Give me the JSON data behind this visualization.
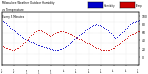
{
  "title": "Milwaukee Weather Outdoor Humidity",
  "subtitle1": "vs Temperature",
  "subtitle2": "Every 5 Minutes",
  "bg_color": "#ffffff",
  "grid_color": "#d0d0d0",
  "humidity_color": "#0000cc",
  "temp_color": "#cc0000",
  "legend_humidity_label": "Humidity",
  "legend_temp_label": "Temp",
  "ylim_left": [
    0,
    100
  ],
  "ylim_right": [
    -20,
    110
  ],
  "yticks_right": [
    0,
    20,
    40,
    60,
    80,
    100
  ],
  "xmin": 0,
  "xmax": 288,
  "humidity_x": [
    2,
    5,
    8,
    12,
    15,
    18,
    22,
    25,
    28,
    32,
    35,
    38,
    42,
    45,
    48,
    55,
    58,
    62,
    65,
    68,
    72,
    75,
    78,
    82,
    85,
    88,
    92,
    95,
    98,
    102,
    105,
    108,
    112,
    115,
    118,
    122,
    125,
    128,
    132,
    135,
    138,
    142,
    145,
    148,
    152,
    155,
    158,
    162,
    165,
    168,
    172,
    175,
    178,
    182,
    185,
    188,
    192,
    195,
    198,
    202,
    205,
    208,
    212,
    215,
    218,
    222,
    225,
    228,
    232,
    235,
    238,
    242,
    245,
    248,
    252,
    255,
    258,
    262,
    265,
    268,
    272,
    275,
    278,
    282,
    285,
    288
  ],
  "humidity_y": [
    82,
    80,
    78,
    75,
    73,
    70,
    68,
    65,
    63,
    60,
    58,
    55,
    53,
    50,
    48,
    46,
    45,
    43,
    42,
    40,
    39,
    38,
    37,
    36,
    35,
    34,
    33,
    32,
    31,
    30,
    29,
    28,
    27,
    27,
    28,
    29,
    30,
    32,
    34,
    36,
    38,
    40,
    43,
    45,
    48,
    50,
    53,
    55,
    58,
    60,
    62,
    65,
    67,
    69,
    71,
    73,
    74,
    75,
    76,
    75,
    74,
    73,
    71,
    69,
    67,
    65,
    62,
    59,
    56,
    53,
    50,
    52,
    55,
    58,
    61,
    64,
    67,
    70,
    73,
    76,
    79,
    80,
    81,
    82,
    83,
    84
  ],
  "temp_x": [
    2,
    5,
    8,
    12,
    15,
    18,
    22,
    25,
    28,
    32,
    35,
    38,
    42,
    45,
    48,
    52,
    55,
    58,
    62,
    65,
    68,
    72,
    75,
    78,
    82,
    85,
    88,
    92,
    95,
    98,
    102,
    105,
    108,
    112,
    115,
    118,
    122,
    125,
    128,
    132,
    135,
    138,
    142,
    145,
    148,
    152,
    155,
    158,
    162,
    165,
    168,
    172,
    175,
    178,
    182,
    185,
    188,
    192,
    195,
    198,
    202,
    205,
    208,
    212,
    215,
    218,
    222,
    225,
    228,
    232,
    235,
    238,
    242,
    245,
    248,
    252,
    255,
    258,
    262,
    265,
    268,
    272,
    275,
    278,
    282,
    285,
    288
  ],
  "temp_y": [
    25,
    23,
    22,
    20,
    19,
    18,
    17,
    17,
    18,
    20,
    22,
    25,
    28,
    32,
    36,
    40,
    44,
    48,
    52,
    56,
    60,
    63,
    65,
    66,
    65,
    63,
    61,
    58,
    55,
    52,
    50,
    52,
    54,
    57,
    59,
    61,
    62,
    63,
    62,
    61,
    60,
    58,
    56,
    54,
    52,
    50,
    48,
    46,
    44,
    42,
    40,
    38,
    36,
    34,
    32,
    30,
    28,
    26,
    24,
    22,
    20,
    18,
    17,
    16,
    15,
    15,
    16,
    17,
    18,
    20,
    22,
    25,
    28,
    31,
    34,
    37,
    40,
    43,
    46,
    49,
    52,
    54,
    56,
    58,
    60,
    62,
    63
  ],
  "xtick_labels": [
    "12/1",
    "12/8",
    "12/15",
    "12/22",
    "12/29",
    "1/5",
    "1/12",
    "1/19",
    "1/26",
    "2/2",
    "2/9",
    "2/16"
  ],
  "xtick_pos": [
    0,
    26,
    52,
    78,
    104,
    130,
    156,
    182,
    208,
    234,
    260,
    286
  ]
}
